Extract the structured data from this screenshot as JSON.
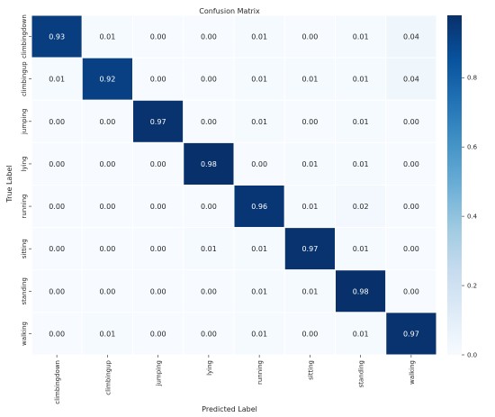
{
  "chart_data": {
    "type": "heatmap",
    "title": "Confusion Matrix",
    "xlabel": "Predicted Label",
    "ylabel": "True Label",
    "x_categories": [
      "climbingdown",
      "climbingup",
      "jumping",
      "lying",
      "running",
      "sitting",
      "standing",
      "walking"
    ],
    "y_categories": [
      "climbingdown",
      "climbingup",
      "jumping",
      "lying",
      "running",
      "sitting",
      "standing",
      "walking"
    ],
    "values": [
      [
        "0.93",
        "0.01",
        "0.00",
        "0.00",
        "0.01",
        "0.00",
        "0.01",
        "0.04"
      ],
      [
        "0.01",
        "0.92",
        "0.00",
        "0.00",
        "0.01",
        "0.01",
        "0.01",
        "0.04"
      ],
      [
        "0.00",
        "0.00",
        "0.97",
        "0.00",
        "0.01",
        "0.00",
        "0.01",
        "0.00"
      ],
      [
        "0.00",
        "0.00",
        "0.00",
        "0.98",
        "0.00",
        "0.01",
        "0.01",
        "0.00"
      ],
      [
        "0.00",
        "0.00",
        "0.00",
        "0.00",
        "0.96",
        "0.01",
        "0.02",
        "0.00"
      ],
      [
        "0.00",
        "0.00",
        "0.00",
        "0.01",
        "0.01",
        "0.97",
        "0.01",
        "0.00"
      ],
      [
        "0.00",
        "0.00",
        "0.00",
        "0.00",
        "0.01",
        "0.01",
        "0.98",
        "0.00"
      ],
      [
        "0.00",
        "0.01",
        "0.00",
        "0.00",
        "0.01",
        "0.00",
        "0.01",
        "0.97"
      ]
    ],
    "colorbar": {
      "range": [
        0,
        0.98
      ],
      "ticks": [
        "0.0",
        "0.2",
        "0.4",
        "0.6",
        "0.8"
      ],
      "colormap": "Blues",
      "low_color": "#f7fbff",
      "high_color": "#08306b"
    },
    "grid": false
  }
}
